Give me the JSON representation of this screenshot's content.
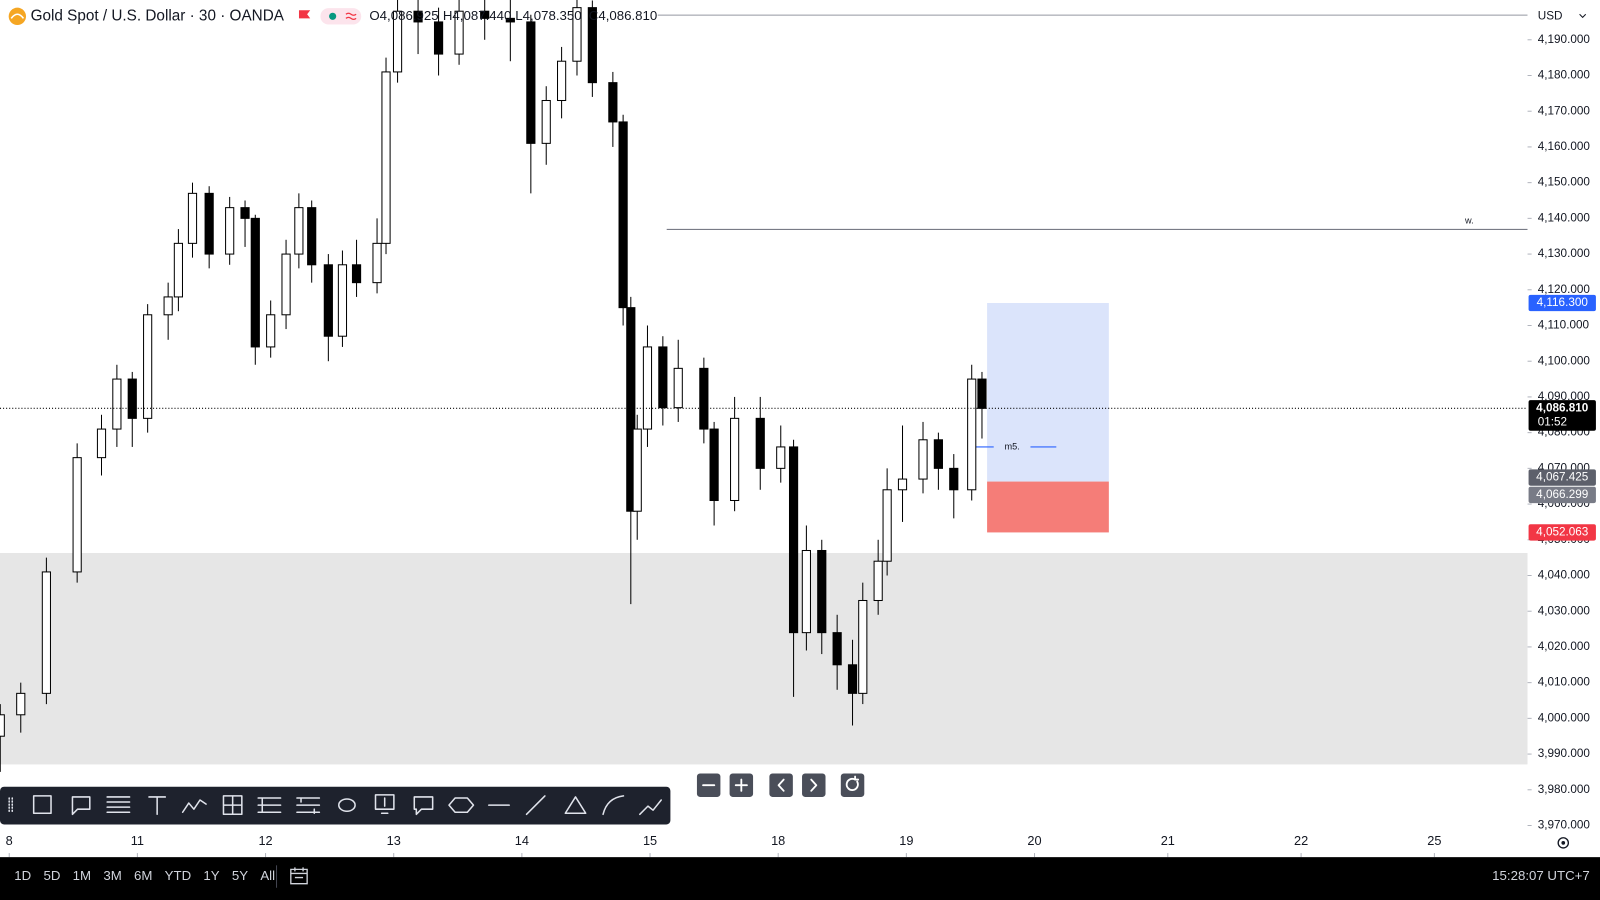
{
  "header": {
    "symbol": "Gold Spot / U.S. Dollar · 30 · OANDA",
    "open": "O4,086.925",
    "high": "H4,087.440",
    "low": "L4,078.350",
    "close": "C4,086.810"
  },
  "currency": "USD",
  "chart_data": {
    "type": "candlestick",
    "x": [
      -0.07,
      0.09,
      0.29,
      0.53,
      0.72,
      0.84,
      0.96,
      1.08,
      1.24,
      1.32,
      1.43,
      1.56,
      1.72,
      1.84,
      1.92,
      2.04,
      2.16,
      2.26,
      2.36,
      2.49,
      2.6,
      2.71,
      2.87,
      2.94,
      3.03,
      3.19,
      3.35,
      3.51,
      3.71,
      3.91,
      4.07,
      4.19,
      4.31,
      4.43,
      4.55,
      4.71,
      4.79,
      4.85,
      4.9,
      4.98,
      5.1,
      5.22,
      5.42,
      5.5,
      5.66,
      5.86,
      6.02,
      6.12,
      6.22,
      6.34,
      6.46,
      6.58,
      6.66,
      6.78,
      6.85,
      6.97,
      7.13,
      7.25,
      7.37,
      7.51,
      7.59
    ],
    "open": [
      3995,
      4001,
      4007,
      4041,
      4073,
      4081,
      4095,
      4084,
      4113,
      4118,
      4133,
      4147,
      4130,
      4143,
      4140,
      4104,
      4113,
      4130,
      4143,
      4127,
      4107,
      4127,
      4122,
      4133,
      4181,
      4198,
      4195,
      4186,
      4198,
      4196,
      4195,
      4161,
      4173,
      4184,
      4199,
      4178,
      4167,
      4115,
      4058,
      4081,
      4104,
      4087,
      4098,
      4081,
      4061,
      4084,
      4070,
      4076,
      4024,
      4047,
      4024,
      4015,
      4007,
      4033,
      4044,
      4064,
      4067,
      4078,
      4070,
      4064,
      4095
    ],
    "high": [
      4004,
      4010,
      4045,
      4077,
      4085,
      4099,
      4097,
      4116,
      4122,
      4137,
      4150,
      4149,
      4146,
      4145,
      4141,
      4117,
      4134,
      4147,
      4145,
      4130,
      4131,
      4134,
      4140,
      4185,
      4203,
      4203,
      4199,
      4203,
      4203,
      4203,
      4197,
      4177,
      4188,
      4203,
      4201,
      4181,
      4169,
      4118,
      4085,
      4110,
      4107,
      4106,
      4101,
      4083,
      4090,
      4090,
      4082,
      4078,
      4054,
      4050,
      4029,
      4022,
      4038,
      4050,
      4070,
      4082,
      4083,
      4080,
      4074,
      4099,
      4097
    ],
    "low": [
      3985,
      3996,
      4004,
      4038,
      4068,
      4076,
      4076,
      4080,
      4106,
      4114,
      4129,
      4126,
      4127,
      4132,
      4099,
      4101,
      4109,
      4126,
      4122,
      4100,
      4104,
      4118,
      4119,
      4130,
      4178,
      4186,
      4180,
      4183,
      4190,
      4184,
      4147,
      4155,
      4168,
      4180,
      4174,
      4160,
      4110,
      4032,
      4050,
      4076,
      4082,
      4083,
      4077,
      4054,
      4058,
      4064,
      4066,
      4006,
      4019,
      4018,
      4008,
      3998,
      4004,
      4029,
      4040,
      4055,
      4063,
      4064,
      4056,
      4061,
      4078.35
    ],
    "close": [
      4001,
      4007,
      4041,
      4073,
      4081,
      4095,
      4084,
      4113,
      4118,
      4133,
      4147,
      4130,
      4143,
      4140,
      4104,
      4113,
      4130,
      4143,
      4127,
      4107,
      4127,
      4122,
      4133,
      4181,
      4198,
      4195,
      4186,
      4198,
      4196,
      4195,
      4161,
      4173,
      4184,
      4199,
      4178,
      4167,
      4115,
      4058,
      4081,
      4104,
      4087,
      4098,
      4081,
      4061,
      4084,
      4070,
      4076,
      4024,
      4047,
      4024,
      4015,
      4007,
      4033,
      4044,
      4064,
      4067,
      4078,
      4070,
      4064,
      4095,
      4086.81
    ],
    "up_color": "#ffffff",
    "down_color": "#000000",
    "wick_color": "#000000",
    "xlim": [
      -0.072,
      11.847
    ],
    "xticks": [
      {
        "value": 0,
        "label": "8"
      },
      {
        "value": 1,
        "label": "11"
      },
      {
        "value": 2,
        "label": "12"
      },
      {
        "value": 3,
        "label": "13"
      },
      {
        "value": 4,
        "label": "14"
      },
      {
        "value": 5,
        "label": "15"
      },
      {
        "value": 6,
        "label": "18"
      },
      {
        "value": 7,
        "label": "19"
      },
      {
        "value": 8,
        "label": "20"
      },
      {
        "value": 9.04,
        "label": "21"
      },
      {
        "value": 10.08,
        "label": "22"
      },
      {
        "value": 11.12,
        "label": "25"
      }
    ],
    "ylim": [
      3961.14,
      4201.14
    ],
    "yticks": [
      {
        "value": 3970,
        "label": "3,970.000"
      },
      {
        "value": 3980,
        "label": "3,980.000"
      },
      {
        "value": 3990,
        "label": "3,990.000"
      },
      {
        "value": 4000,
        "label": "4,000.000"
      },
      {
        "value": 4010,
        "label": "4,010.000"
      },
      {
        "value": 4020,
        "label": "4,020.000"
      },
      {
        "value": 4030,
        "label": "4,030.000"
      },
      {
        "value": 4040,
        "label": "4,040.000"
      },
      {
        "value": 4050,
        "label": "4,050.000"
      },
      {
        "value": 4060,
        "label": "4,060.000"
      },
      {
        "value": 4070,
        "label": "4,070.000"
      },
      {
        "value": 4080,
        "label": "4,080.000"
      },
      {
        "value": 4090,
        "label": "4,090.000"
      },
      {
        "value": 4100,
        "label": "4,100.000"
      },
      {
        "value": 4110,
        "label": "4,110.000"
      },
      {
        "value": 4120,
        "label": "4,120.000"
      },
      {
        "value": 4130,
        "label": "4,130.000"
      },
      {
        "value": 4140,
        "label": "4,140.000"
      },
      {
        "value": 4150,
        "label": "4,150.000"
      },
      {
        "value": 4160,
        "label": "4,160.000"
      },
      {
        "value": 4170,
        "label": "4,170.000"
      },
      {
        "value": 4180,
        "label": "4,180.000"
      },
      {
        "value": 4190,
        "label": "4,190.000"
      }
    ],
    "current_price": {
      "value": 4086.81,
      "label": "4,086.810",
      "countdown": "01:52",
      "color": "#000000"
    },
    "zone": {
      "low": 3987.1,
      "high": 4046.3,
      "color": "#e6e6e6"
    },
    "lines": [
      {
        "price": 4196.9,
        "x_start": 5.06,
        "color": "#9598a1"
      },
      {
        "price": 4136.9,
        "x_start": 5.13,
        "color": "#787b86",
        "label": "w."
      },
      {
        "price": 4076,
        "x_start": 7.48,
        "x_end": 8.17,
        "color": "#2962ff",
        "label": "m5."
      }
    ],
    "position": {
      "x": [
        7.63,
        8.58
      ],
      "target": 4116.3,
      "entry": 4066.299,
      "stop": 4052.063,
      "profit_color": "#dbe4fb",
      "loss_color": "#f57d78"
    },
    "price_labels": [
      {
        "value": 4116.3,
        "label": "4,116.300",
        "color": "#2962ff"
      },
      {
        "value": 4067.425,
        "label": "4,067.425",
        "color": "#5d606b"
      },
      {
        "value": 4066.299,
        "label": "4,066.299",
        "color": "#787b86"
      },
      {
        "value": 4052.063,
        "label": "4,052.063",
        "color": "#f23645"
      }
    ]
  },
  "toolbar": {
    "ranges": [
      "1D",
      "5D",
      "1M",
      "3M",
      "6M",
      "YTD",
      "1Y",
      "5Y",
      "All"
    ],
    "clock": "15:28:07 UTC+7"
  }
}
